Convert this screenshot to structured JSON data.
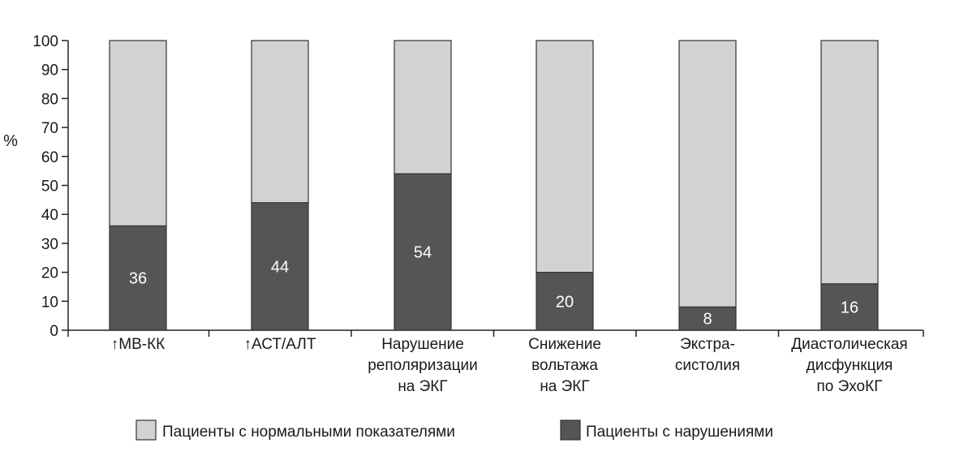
{
  "chart_data": {
    "type": "bar",
    "stacked": true,
    "ylabel": "%",
    "ylim": [
      0,
      100
    ],
    "yticks": [
      0,
      10,
      20,
      30,
      40,
      50,
      60,
      70,
      80,
      90,
      100
    ],
    "grid": false,
    "legend_position": "bottom",
    "categories": [
      [
        "↑МВ-КК"
      ],
      [
        "↑АСТ/АЛТ"
      ],
      [
        "Нарушение",
        "реполяризации",
        "на ЭКГ"
      ],
      [
        "Снижение",
        "вольтажа",
        "на ЭКГ"
      ],
      [
        "Экстра-",
        "систолия"
      ],
      [
        "Диастолическая",
        "дисфункция",
        "по ЭхоКГ"
      ]
    ],
    "series": [
      {
        "name": "Пациенты с нарушениями",
        "values": [
          36,
          44,
          54,
          20,
          8,
          16
        ],
        "color": "#555555"
      },
      {
        "name": "Пациенты с нормальными показателями",
        "values": [
          64,
          56,
          46,
          80,
          92,
          84
        ],
        "color": "#d2d2d2"
      }
    ],
    "data_labels": [
      "36",
      "44",
      "54",
      "20",
      "8",
      "16"
    ],
    "legend": [
      {
        "label": "Пациенты с нормальными показателями",
        "color": "#d2d2d2"
      },
      {
        "label": "Пациенты с нарушениями",
        "color": "#555555"
      }
    ]
  }
}
